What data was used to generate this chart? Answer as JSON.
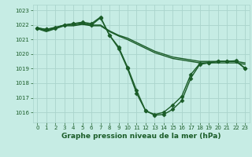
{
  "title": "Graphe pression niveau de la mer (hPa)",
  "bg_color": "#c6ece4",
  "grid_color": "#aad4cc",
  "line_color": "#1a5c28",
  "xlim": [
    -0.5,
    23.5
  ],
  "ylim": [
    1015.3,
    1023.4
  ],
  "yticks": [
    1016,
    1017,
    1018,
    1019,
    1020,
    1021,
    1022,
    1023
  ],
  "xticks": [
    0,
    1,
    2,
    3,
    4,
    5,
    6,
    7,
    8,
    9,
    10,
    11,
    12,
    13,
    14,
    15,
    16,
    17,
    18,
    19,
    20,
    21,
    22,
    23
  ],
  "line1_x": [
    0,
    1,
    2,
    3,
    4,
    5,
    6,
    7,
    8,
    9,
    10,
    11,
    12,
    13,
    14,
    15,
    16,
    17,
    18,
    19,
    20,
    21,
    22,
    23
  ],
  "line1_y": [
    1021.8,
    1021.6,
    1021.8,
    1022.0,
    1022.0,
    1022.1,
    1022.0,
    1022.0,
    1021.6,
    1021.3,
    1021.1,
    1020.8,
    1020.5,
    1020.2,
    1020.0,
    1019.8,
    1019.7,
    1019.6,
    1019.5,
    1019.5,
    1019.5,
    1019.5,
    1019.5,
    1019.4
  ],
  "line2_x": [
    0,
    1,
    2,
    3,
    4,
    5,
    6,
    7,
    8,
    9,
    10,
    11,
    12,
    13,
    14,
    15,
    16,
    17,
    18,
    19,
    20,
    21,
    22,
    23
  ],
  "line2_y": [
    1021.75,
    1021.55,
    1021.75,
    1021.95,
    1021.95,
    1022.05,
    1021.95,
    1021.95,
    1021.55,
    1021.25,
    1021.0,
    1020.7,
    1020.4,
    1020.1,
    1019.9,
    1019.7,
    1019.6,
    1019.5,
    1019.4,
    1019.4,
    1019.4,
    1019.4,
    1019.4,
    1019.3
  ],
  "line3_x": [
    0,
    1,
    2,
    3,
    4,
    5,
    6,
    7,
    8,
    9,
    10,
    11,
    12,
    13,
    14,
    15,
    16,
    17,
    18,
    19,
    20,
    21,
    22,
    23
  ],
  "line3_y": [
    1021.8,
    1021.7,
    1021.8,
    1022.0,
    1022.1,
    1022.2,
    1022.1,
    1022.55,
    1021.3,
    1020.4,
    1019.0,
    1017.3,
    1016.1,
    1015.8,
    1015.85,
    1016.2,
    1016.8,
    1018.35,
    1019.3,
    1019.4,
    1019.5,
    1019.5,
    1019.55,
    1019.0
  ],
  "line4_x": [
    0,
    1,
    2,
    3,
    4,
    5,
    6,
    7,
    8,
    9,
    10,
    11,
    12,
    13,
    14,
    15,
    16,
    17,
    18,
    19,
    20,
    21,
    22,
    23
  ],
  "line4_y": [
    1021.8,
    1021.7,
    1021.85,
    1022.0,
    1022.1,
    1022.15,
    1022.0,
    1022.5,
    1021.3,
    1020.5,
    1019.1,
    1017.5,
    1016.1,
    1015.85,
    1016.0,
    1016.5,
    1017.1,
    1018.6,
    1019.35,
    1019.4,
    1019.5,
    1019.5,
    1019.5,
    1019.05
  ],
  "marker": "D",
  "marker_size": 2.5,
  "line_width": 1.0,
  "tick_fontsize": 5,
  "xlabel_fontsize": 6.5
}
